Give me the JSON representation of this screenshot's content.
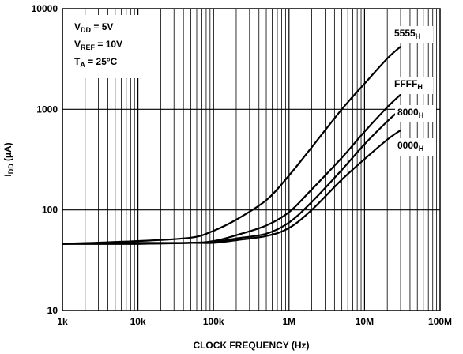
{
  "chart_data": {
    "type": "line",
    "xscale": "log",
    "yscale": "log",
    "xlim": [
      1000,
      100000000
    ],
    "ylim": [
      10,
      10000
    ],
    "xlabel": "CLOCK FREQUENCY (Hz)",
    "ylabel": "I",
    "ylabel_sub": "DD",
    "ylabel_unit": " (µA)",
    "grid": true,
    "x_ticks": [
      {
        "value": 1000,
        "label": "1k"
      },
      {
        "value": 10000,
        "label": "10k"
      },
      {
        "value": 100000,
        "label": "100k"
      },
      {
        "value": 1000000,
        "label": "1M"
      },
      {
        "value": 10000000,
        "label": "10M"
      },
      {
        "value": 100000000,
        "label": "100M"
      }
    ],
    "y_ticks": [
      {
        "value": 10,
        "label": "10"
      },
      {
        "value": 100,
        "label": "100"
      },
      {
        "value": 1000,
        "label": "1000"
      },
      {
        "value": 10000,
        "label": "10000"
      }
    ],
    "annotations": [
      {
        "main": "V",
        "sub": "DD",
        "rest": " = 5V"
      },
      {
        "main": "V",
        "sub": "REF",
        "rest": " = 10V"
      },
      {
        "main": "T",
        "sub": "A",
        "rest": " = 25°C"
      }
    ],
    "series": [
      {
        "name": "5555",
        "name_sub": "H",
        "points": [
          [
            1000,
            46
          ],
          [
            10000,
            49
          ],
          [
            50000,
            53
          ],
          [
            100000,
            62
          ],
          [
            200000,
            80
          ],
          [
            500000,
            125
          ],
          [
            1000000,
            220
          ],
          [
            2000000,
            420
          ],
          [
            5000000,
            1000
          ],
          [
            10000000,
            1800
          ],
          [
            20000000,
            3200
          ],
          [
            30000000,
            4200
          ]
        ]
      },
      {
        "name": "FFFF",
        "name_sub": "H",
        "points": [
          [
            1000,
            46
          ],
          [
            10000,
            47
          ],
          [
            50000,
            47
          ],
          [
            100000,
            49
          ],
          [
            200000,
            56
          ],
          [
            500000,
            70
          ],
          [
            1000000,
            95
          ],
          [
            2000000,
            160
          ],
          [
            5000000,
            330
          ],
          [
            10000000,
            600
          ],
          [
            20000000,
            1050
          ],
          [
            30000000,
            1400
          ]
        ]
      },
      {
        "name": "8000",
        "name_sub": "H",
        "points": [
          [
            1000,
            46
          ],
          [
            10000,
            46
          ],
          [
            50000,
            47
          ],
          [
            100000,
            48
          ],
          [
            200000,
            52
          ],
          [
            500000,
            58
          ],
          [
            1000000,
            75
          ],
          [
            2000000,
            120
          ],
          [
            5000000,
            250
          ],
          [
            10000000,
            450
          ],
          [
            20000000,
            760
          ],
          [
            30000000,
            1000
          ]
        ]
      },
      {
        "name": "0000",
        "name_sub": "H",
        "points": [
          [
            1000,
            46
          ],
          [
            10000,
            46
          ],
          [
            50000,
            47
          ],
          [
            100000,
            47
          ],
          [
            200000,
            50
          ],
          [
            500000,
            55
          ],
          [
            1000000,
            66
          ],
          [
            2000000,
            100
          ],
          [
            5000000,
            200
          ],
          [
            10000000,
            320
          ],
          [
            20000000,
            500
          ],
          [
            30000000,
            620
          ]
        ]
      }
    ]
  }
}
